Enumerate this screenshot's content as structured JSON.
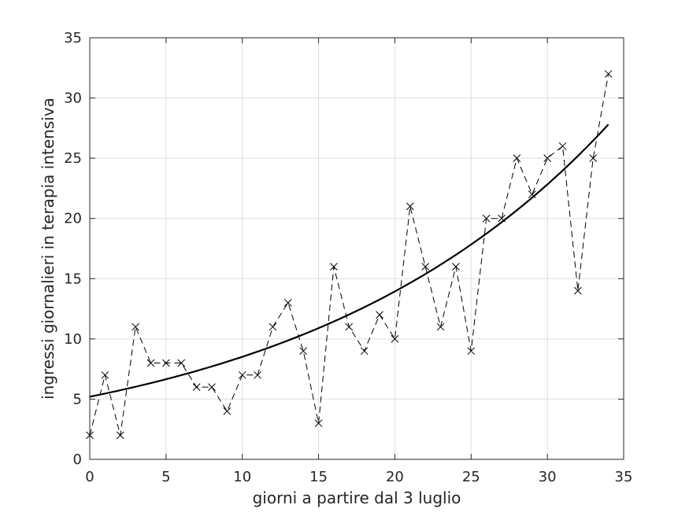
{
  "chart_data": {
    "type": "line",
    "xlabel": "giorni a partire dal 3 luglio",
    "ylabel": "ingressi giornalieri in terapia intensiva",
    "xlim": [
      0,
      35
    ],
    "ylim": [
      0,
      35
    ],
    "xticks": [
      0,
      5,
      10,
      15,
      20,
      25,
      30,
      35
    ],
    "yticks": [
      0,
      5,
      10,
      15,
      20,
      25,
      30,
      35
    ],
    "grid": true,
    "legend": "none",
    "series": [
      {
        "style": "dashed-with-x-markers",
        "x": [
          0,
          1,
          2,
          3,
          4,
          5,
          6,
          7,
          8,
          9,
          10,
          11,
          12,
          13,
          14,
          15,
          16,
          17,
          18,
          19,
          20,
          21,
          22,
          23,
          24,
          25,
          26,
          27,
          28,
          29,
          30,
          31,
          32,
          33,
          34
        ],
        "y": [
          2,
          7,
          2,
          11,
          8,
          8,
          8,
          6,
          6,
          4,
          7,
          7,
          11,
          13,
          9,
          3,
          16,
          11,
          9,
          12,
          10,
          21,
          16,
          11,
          16,
          9,
          20,
          20,
          25,
          22,
          25,
          26,
          14,
          25,
          32
        ]
      },
      {
        "style": "solid-fit",
        "x": [
          0,
          34
        ],
        "y_start": 5.2,
        "y_end": 27.8,
        "note_model": "exponential"
      }
    ]
  }
}
